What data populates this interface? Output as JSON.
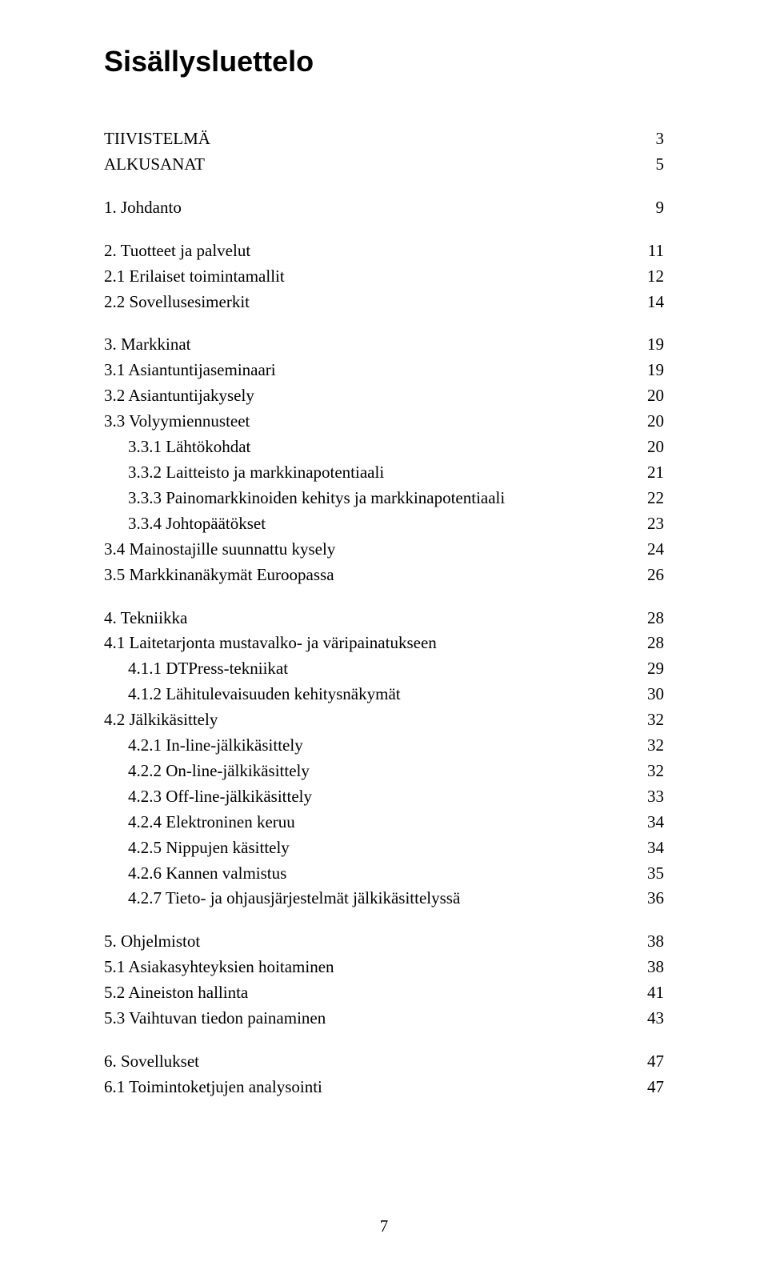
{
  "title": "Sisällysluettelo",
  "footer_page": "7",
  "entries": [
    {
      "label": "TIIVISTELMÄ",
      "page": "3",
      "level": 0
    },
    {
      "label": "ALKUSANAT",
      "page": "5",
      "level": 0
    },
    {
      "gap": true
    },
    {
      "label": "1. Johdanto",
      "page": "9",
      "level": 0
    },
    {
      "gap": true
    },
    {
      "label": "2. Tuotteet ja palvelut",
      "page": "11",
      "level": 0
    },
    {
      "label": "2.1 Erilaiset toimintamallit",
      "page": "12",
      "level": 1
    },
    {
      "label": "2.2 Sovellusesimerkit",
      "page": "14",
      "level": 1
    },
    {
      "gap": true
    },
    {
      "label": "3. Markkinat",
      "page": "19",
      "level": 0
    },
    {
      "label": "3.1 Asiantuntijaseminaari",
      "page": "19",
      "level": 1
    },
    {
      "label": "3.2 Asiantuntijakysely",
      "page": "20",
      "level": 1
    },
    {
      "label": "3.3 Volyymiennusteet",
      "page": "20",
      "level": 1
    },
    {
      "label": "3.3.1 Lähtökohdat",
      "page": "20",
      "level": 2
    },
    {
      "label": "3.3.2 Laitteisto ja markkinapotentiaali",
      "page": "21",
      "level": 2
    },
    {
      "label": "3.3.3 Painomarkkinoiden kehitys ja markkinapotentiaali",
      "page": "22",
      "level": 2
    },
    {
      "label": "3.3.4 Johtopäätökset",
      "page": "23",
      "level": 2
    },
    {
      "label": "3.4 Mainostajille suunnattu kysely",
      "page": "24",
      "level": 1
    },
    {
      "label": "3.5 Markkinanäkymät Euroopassa",
      "page": "26",
      "level": 1
    },
    {
      "gap": true
    },
    {
      "label": "4. Tekniikka",
      "page": "28",
      "level": 0
    },
    {
      "label": "4.1 Laitetarjonta mustavalko- ja väripainatukseen",
      "page": "28",
      "level": 1
    },
    {
      "label": "4.1.1 DTPress-tekniikat",
      "page": "29",
      "level": 2
    },
    {
      "label": "4.1.2 Lähitulevaisuuden kehitysnäkymät",
      "page": "30",
      "level": 2
    },
    {
      "label": "4.2 Jälkikäsittely",
      "page": "32",
      "level": 1
    },
    {
      "label": "4.2.1 In-line-jälkikäsittely",
      "page": "32",
      "level": 2
    },
    {
      "label": "4.2.2 On-line-jälkikäsittely",
      "page": "32",
      "level": 2
    },
    {
      "label": "4.2.3 Off-line-jälkikäsittely",
      "page": "33",
      "level": 2
    },
    {
      "label": "4.2.4 Elektroninen keruu",
      "page": "34",
      "level": 2
    },
    {
      "label": "4.2.5 Nippujen käsittely",
      "page": "34",
      "level": 2
    },
    {
      "label": "4.2.6 Kannen valmistus",
      "page": "35",
      "level": 2
    },
    {
      "label": "4.2.7 Tieto- ja ohjausjärjestelmät jälkikäsittelyssä",
      "page": "36",
      "level": 2
    },
    {
      "gap": true
    },
    {
      "label": "5. Ohjelmistot",
      "page": "38",
      "level": 0
    },
    {
      "label": "5.1 Asiakasyhteyksien hoitaminen",
      "page": "38",
      "level": 1
    },
    {
      "label": "5.2 Aineiston hallinta",
      "page": "41",
      "level": 1
    },
    {
      "label": "5.3 Vaihtuvan tiedon painaminen",
      "page": "43",
      "level": 1
    },
    {
      "gap": true
    },
    {
      "label": "6. Sovellukset",
      "page": "47",
      "level": 0
    },
    {
      "label": "6.1 Toimintoketjujen analysointi",
      "page": "47",
      "level": 1
    }
  ]
}
